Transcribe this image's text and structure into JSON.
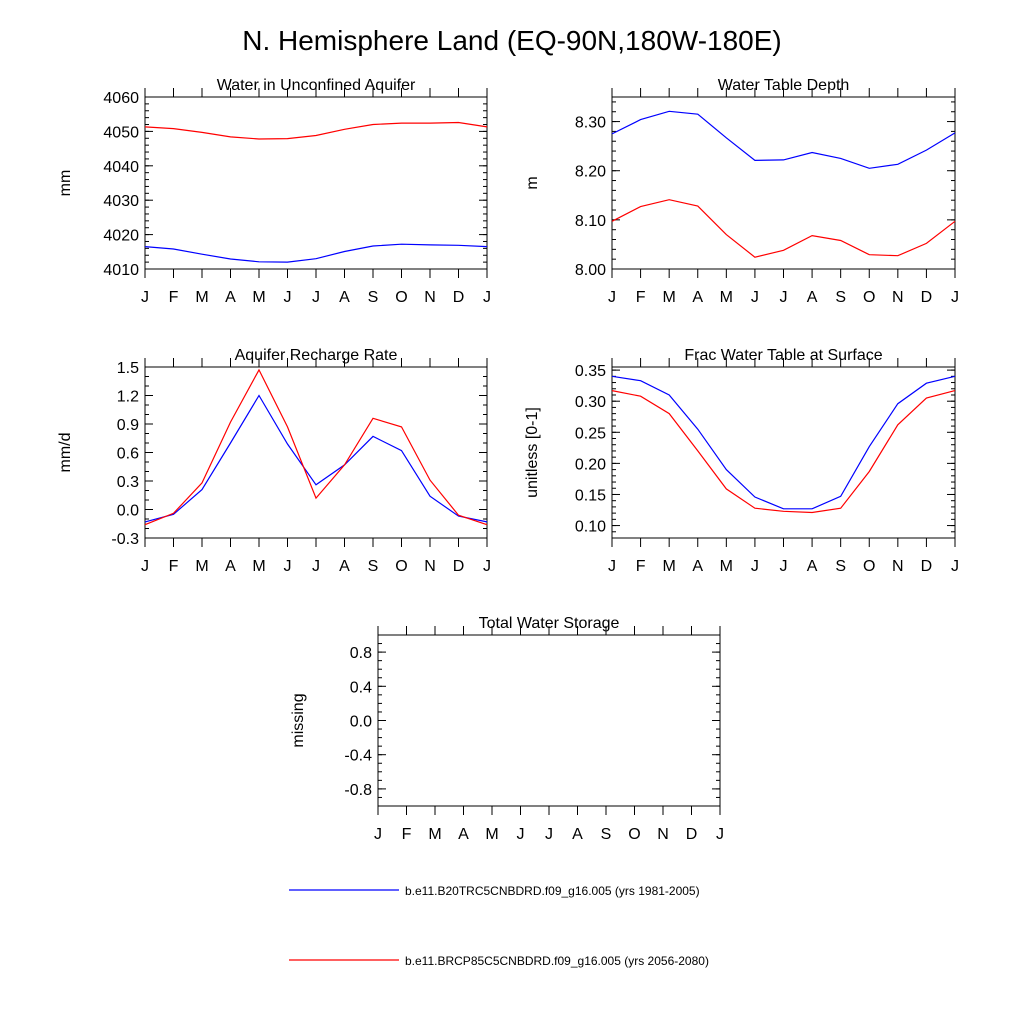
{
  "title": "N. Hemisphere Land (EQ-90N,180W-180E)",
  "months": [
    "J",
    "F",
    "M",
    "A",
    "M",
    "J",
    "J",
    "A",
    "S",
    "O",
    "N",
    "D",
    "J"
  ],
  "colors": {
    "blue": "#0000ff",
    "red": "#ff0000",
    "axis": "#000000"
  },
  "legend": [
    {
      "label": "b.e11.B20TRC5CNBDRD.f09_g16.005 (yrs 1981-2005)",
      "color": "#0000ff"
    },
    {
      "label": "b.e11.BRCP85C5CNBDRD.f09_g16.005 (yrs 2056-2080)",
      "color": "#ff0000"
    }
  ],
  "chart_data": [
    {
      "type": "line",
      "title": "Water in Unconfined Aquifer",
      "ylabel": "mm",
      "ylim": [
        4010,
        4060
      ],
      "yticks": [
        4010,
        4020,
        4030,
        4040,
        4050,
        4060
      ],
      "ytick_labels": [
        "4010",
        "4020",
        "4030",
        "4040",
        "4050",
        "4060"
      ],
      "yminor": 2,
      "series": [
        {
          "name": "b.e11.B20TRC5CNBDRD.f09_g16.005 (yrs 1981-2005)",
          "color": "#0000ff",
          "values": [
            4016.5,
            4015.8,
            4014.3,
            4012.9,
            4012.1,
            4012.0,
            4013.0,
            4015.1,
            4016.7,
            4017.2,
            4017.0,
            4016.9,
            4016.5
          ]
        },
        {
          "name": "b.e11.BRCP85C5CNBDRD.f09_g16.005 (yrs 2056-2080)",
          "color": "#ff0000",
          "values": [
            4051.3,
            4050.8,
            4049.7,
            4048.4,
            4047.8,
            4047.9,
            4048.8,
            4050.6,
            4052.0,
            4052.4,
            4052.4,
            4052.6,
            4051.3
          ]
        }
      ]
    },
    {
      "type": "line",
      "title": "Water Table Depth",
      "ylabel": "m",
      "ylim": [
        8.0,
        8.35
      ],
      "yticks": [
        8.0,
        8.1,
        8.2,
        8.3
      ],
      "ytick_labels": [
        "8.00",
        "8.10",
        "8.20",
        "8.30"
      ],
      "yminor": 0.02,
      "series": [
        {
          "name": "b.e11.B20TRC5CNBDRD.f09_g16.005 (yrs 1981-2005)",
          "color": "#0000ff",
          "values": [
            8.275,
            8.304,
            8.321,
            8.315,
            8.267,
            8.221,
            8.222,
            8.237,
            8.225,
            8.205,
            8.213,
            8.242,
            8.277
          ]
        },
        {
          "name": "b.e11.BRCP85C5CNBDRD.f09_g16.005 (yrs 2056-2080)",
          "color": "#ff0000",
          "values": [
            8.097,
            8.127,
            8.141,
            8.128,
            8.07,
            8.024,
            8.038,
            8.068,
            8.058,
            8.029,
            8.027,
            8.052,
            8.097
          ]
        }
      ]
    },
    {
      "type": "line",
      "title": "Aquifer Recharge Rate",
      "ylabel": "mm/d",
      "ylim": [
        -0.3,
        1.5
      ],
      "yticks": [
        -0.3,
        0.0,
        0.3,
        0.6,
        0.9,
        1.2,
        1.5
      ],
      "ytick_labels": [
        "-0.3",
        "0.0",
        "0.3",
        "0.6",
        "0.9",
        "1.2",
        "1.5"
      ],
      "yminor": 0.1,
      "series": [
        {
          "name": "b.e11.B20TRC5CNBDRD.f09_g16.005 (yrs 1981-2005)",
          "color": "#0000ff",
          "values": [
            -0.13,
            -0.05,
            0.21,
            0.7,
            1.2,
            0.69,
            0.26,
            0.47,
            0.77,
            0.62,
            0.14,
            -0.07,
            -0.13
          ]
        },
        {
          "name": "b.e11.BRCP85C5CNBDRD.f09_g16.005 (yrs 2056-2080)",
          "color": "#ff0000",
          "values": [
            -0.16,
            -0.04,
            0.28,
            0.92,
            1.47,
            0.87,
            0.12,
            0.47,
            0.96,
            0.87,
            0.31,
            -0.06,
            -0.16
          ]
        }
      ]
    },
    {
      "type": "line",
      "title": "Frac Water Table at Surface",
      "ylabel": "unitless [0-1]",
      "ylim": [
        0.08,
        0.355
      ],
      "yticks": [
        0.1,
        0.15,
        0.2,
        0.25,
        0.3,
        0.35
      ],
      "ytick_labels": [
        "0.10",
        "0.15",
        "0.20",
        "0.25",
        "0.30",
        "0.35"
      ],
      "yminor": 0.01,
      "series": [
        {
          "name": "b.e11.B20TRC5CNBDRD.f09_g16.005 (yrs 1981-2005)",
          "color": "#0000ff",
          "values": [
            0.34,
            0.333,
            0.31,
            0.255,
            0.19,
            0.146,
            0.127,
            0.127,
            0.147,
            0.227,
            0.296,
            0.329,
            0.34
          ]
        },
        {
          "name": "b.e11.BRCP85C5CNBDRD.f09_g16.005 (yrs 2056-2080)",
          "color": "#ff0000",
          "values": [
            0.317,
            0.308,
            0.28,
            0.22,
            0.159,
            0.128,
            0.123,
            0.121,
            0.128,
            0.187,
            0.262,
            0.305,
            0.317
          ]
        }
      ]
    },
    {
      "type": "line",
      "title": "Total Water Storage",
      "ylabel": "missing",
      "ylim": [
        -1.0,
        1.0
      ],
      "yticks": [
        -0.8,
        -0.4,
        0.0,
        0.4,
        0.8
      ],
      "ytick_labels": [
        "-0.8",
        "-0.4",
        "0.0",
        "0.4",
        "0.8"
      ],
      "yminor": 0.1,
      "series": []
    }
  ]
}
